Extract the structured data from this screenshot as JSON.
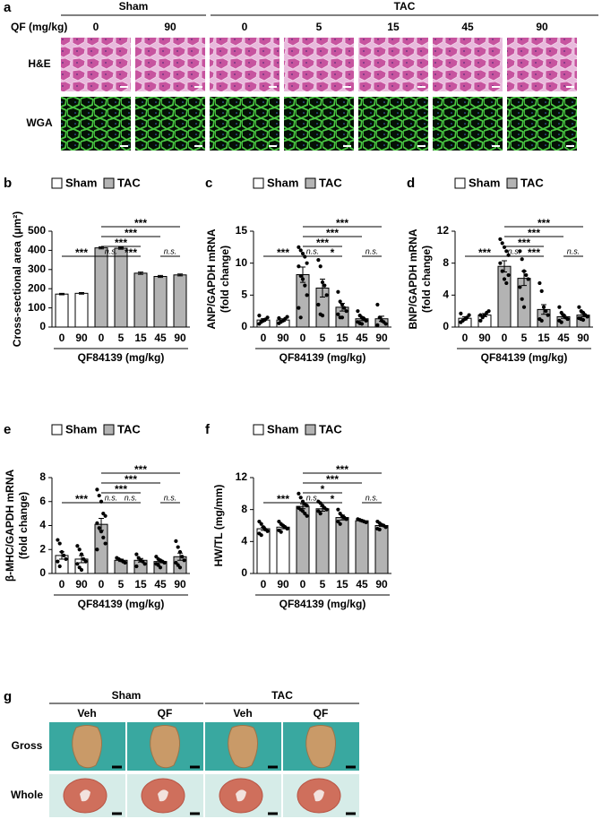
{
  "panel_a": {
    "label": "a",
    "groups": [
      "Sham",
      "TAC"
    ],
    "dose_label": "QF (mg/kg)",
    "doses": [
      "0",
      "90",
      "0",
      "5",
      "15",
      "45",
      "90"
    ],
    "rows": [
      "H&E",
      "WGA"
    ]
  },
  "chart_data": [
    {
      "type": "bar",
      "panel": "b",
      "ylabel": "Cross-sectional area (μm²)",
      "xlabel": "QF84139 (mg/kg)",
      "categories": [
        "0",
        "90",
        "0",
        "5",
        "15",
        "45",
        "90"
      ],
      "ylim": [
        0,
        500
      ],
      "yticks": [
        0,
        100,
        200,
        300,
        400,
        500
      ],
      "series": [
        {
          "name": "Sham",
          "color": "#ffffff",
          "values": [
            172,
            176,
            null,
            null,
            null,
            null,
            null
          ],
          "errors": [
            4,
            4,
            null,
            null,
            null,
            null,
            null
          ]
        },
        {
          "name": "TAC",
          "color": "#b3b3b3",
          "values": [
            null,
            null,
            413,
            411,
            281,
            264,
            272
          ],
          "errors": [
            null,
            null,
            5,
            5,
            6,
            5,
            5
          ]
        }
      ],
      "comparisons": [
        {
          "span": [
            2,
            3
          ],
          "label": "n.s."
        },
        {
          "span": [
            3,
            4
          ],
          "label": "***"
        },
        {
          "span": [
            5,
            6
          ],
          "label": "n.s."
        },
        {
          "span": [
            2,
            4
          ],
          "label": "***"
        },
        {
          "span": [
            2,
            5
          ],
          "label": "***"
        },
        {
          "span": [
            2,
            6
          ],
          "label": "***"
        },
        {
          "span": [
            0,
            2
          ],
          "label": "***"
        }
      ]
    },
    {
      "type": "bar",
      "panel": "c",
      "ylabel": [
        "ANP/GAPDH mRNA",
        "(fold change)"
      ],
      "xlabel": "QF84139 (mg/kg)",
      "categories": [
        "0",
        "90",
        "0",
        "5",
        "15",
        "45",
        "90"
      ],
      "ylim": [
        0,
        15
      ],
      "yticks": [
        0,
        5,
        10,
        15
      ],
      "series": [
        {
          "name": "Sham",
          "color": "#ffffff",
          "values": [
            1.1,
            1.1,
            null,
            null,
            null,
            null,
            null
          ],
          "errors": [
            0.2,
            0.2,
            null,
            null,
            null,
            null,
            null
          ],
          "points": [
            [
              0.5,
              0.8,
              1.0,
              1.2,
              1.5,
              1.8,
              0.9,
              1.1
            ],
            [
              0.6,
              0.9,
              1.0,
              1.3,
              1.6,
              1.4,
              0.8
            ],
            null,
            null,
            null,
            null,
            null
          ]
        },
        {
          "name": "TAC",
          "color": "#b3b3b3",
          "values": [
            null,
            null,
            8.2,
            6.1,
            3.1,
            1.3,
            1.3
          ],
          "errors": [
            null,
            null,
            1.2,
            1.4,
            0.6,
            0.3,
            0.4
          ],
          "points": [
            null,
            null,
            [
              12.5,
              12,
              11.5,
              11,
              10,
              9.5,
              8,
              7.5,
              6.5,
              5,
              3,
              1.5
            ],
            [
              10.5,
              9.5,
              7,
              6.5,
              5,
              3.5,
              2,
              1.8
            ],
            [
              5.5,
              4,
              3.5,
              3,
              2.5,
              2,
              1.5,
              1.5
            ],
            [
              2.5,
              1.8,
              1.5,
              1.3,
              1.0,
              0.8,
              0.6,
              0.5
            ],
            [
              3.5,
              1.5,
              1.0,
              0.8,
              0.5,
              0.3
            ]
          ]
        }
      ],
      "comparisons": [
        {
          "span": [
            2,
            3
          ],
          "label": "n.s."
        },
        {
          "span": [
            3,
            4
          ],
          "label": "*"
        },
        {
          "span": [
            5,
            6
          ],
          "label": "n.s."
        },
        {
          "span": [
            2,
            4
          ],
          "label": "***"
        },
        {
          "span": [
            2,
            5
          ],
          "label": "***"
        },
        {
          "span": [
            2,
            6
          ],
          "label": "***"
        },
        {
          "span": [
            0,
            2
          ],
          "label": "***"
        }
      ]
    },
    {
      "type": "bar",
      "panel": "d",
      "ylabel": [
        "BNP/GAPDH mRNA",
        "(fold change)"
      ],
      "xlabel": "QF84139 (mg/kg)",
      "categories": [
        "0",
        "90",
        "0",
        "5",
        "15",
        "45",
        "90"
      ],
      "ylim": [
        0,
        12
      ],
      "yticks": [
        0,
        4,
        8,
        12
      ],
      "series": [
        {
          "name": "Sham",
          "color": "#ffffff",
          "values": [
            1.1,
            1.5,
            null,
            null,
            null,
            null,
            null
          ],
          "errors": [
            0.2,
            0.2,
            null,
            null,
            null,
            null,
            null
          ],
          "points": [
            [
              0.6,
              0.8,
              1.0,
              1.2,
              1.5,
              1.7
            ],
            [
              0.8,
              1.2,
              1.5,
              1.8,
              2.0,
              1.5
            ],
            null,
            null,
            null,
            null,
            null
          ]
        },
        {
          "name": "TAC",
          "color": "#b3b3b3",
          "values": [
            null,
            null,
            7.6,
            6.1,
            2.2,
            1.3,
            1.5
          ],
          "errors": [
            null,
            null,
            0.7,
            0.9,
            0.6,
            0.2,
            0.2
          ],
          "points": [
            null,
            null,
            [
              11,
              10.5,
              10,
              9.5,
              9,
              8,
              7,
              6,
              5.5,
              6.5
            ],
            [
              9.5,
              8.5,
              7,
              6.5,
              6,
              5,
              3.5,
              2.5
            ],
            [
              5.5,
              4.5,
              2.5,
              2,
              1.5,
              1,
              0.8
            ],
            [
              2.5,
              1.8,
              1.5,
              1.2,
              1.0,
              0.8,
              0.6
            ],
            [
              2.5,
              2,
              1.8,
              1.5,
              1.3,
              1.1,
              1.0,
              0.9
            ]
          ]
        }
      ],
      "comparisons": [
        {
          "span": [
            2,
            3
          ],
          "label": "n.s."
        },
        {
          "span": [
            3,
            4
          ],
          "label": "***"
        },
        {
          "span": [
            5,
            6
          ],
          "label": "n.s."
        },
        {
          "span": [
            2,
            4
          ],
          "label": "***"
        },
        {
          "span": [
            2,
            5
          ],
          "label": "***"
        },
        {
          "span": [
            2,
            6
          ],
          "label": "***"
        },
        {
          "span": [
            0,
            2
          ],
          "label": "***"
        }
      ]
    },
    {
      "type": "bar",
      "panel": "e",
      "ylabel": [
        "β-MHC/GAPDH mRNA",
        "(fold change)"
      ],
      "xlabel": "QF84139 (mg/kg)",
      "categories": [
        "0",
        "90",
        "0",
        "5",
        "15",
        "45",
        "90"
      ],
      "ylim": [
        0,
        8
      ],
      "yticks": [
        0,
        2,
        4,
        6,
        8
      ],
      "series": [
        {
          "name": "Sham",
          "color": "#ffffff",
          "values": [
            1.5,
            1.2,
            null,
            null,
            null,
            null,
            null
          ],
          "errors": [
            0.3,
            0.3,
            null,
            null,
            null,
            null,
            null
          ],
          "points": [
            [
              2.8,
              2.5,
              1.8,
              1.5,
              1.2,
              1.0,
              0.6
            ],
            [
              2.3,
              2.0,
              1.6,
              1.2,
              1.0,
              0.8,
              0.5,
              0.3
            ],
            null,
            null,
            null,
            null,
            null
          ]
        },
        {
          "name": "TAC",
          "color": "#b3b3b3",
          "values": [
            null,
            null,
            4.1,
            1.1,
            1.1,
            1.0,
            1.4
          ],
          "errors": [
            null,
            null,
            0.5,
            0.1,
            0.15,
            0.1,
            0.3
          ],
          "points": [
            null,
            null,
            [
              7.0,
              6.5,
              6.0,
              5.0,
              4.8,
              4.2,
              3.8,
              3.5,
              3.0,
              2.5,
              2.0
            ],
            [
              1.3,
              1.2,
              1.1,
              1.0,
              0.9
            ],
            [
              1.6,
              1.3,
              1.1,
              1.0,
              0.8,
              0.6
            ],
            [
              1.4,
              1.2,
              1.1,
              1.0,
              0.9,
              0.8,
              0.7,
              0.5
            ],
            [
              2.7,
              2.2,
              1.8,
              1.4,
              1.1,
              0.9,
              0.7,
              0.5
            ]
          ]
        }
      ],
      "comparisons": [
        {
          "span": [
            2,
            3
          ],
          "label": "n.s."
        },
        {
          "span": [
            3,
            4
          ],
          "label": "n.s."
        },
        {
          "span": [
            5,
            6
          ],
          "label": "n.s."
        },
        {
          "span": [
            2,
            4
          ],
          "label": "***"
        },
        {
          "span": [
            2,
            5
          ],
          "label": "***"
        },
        {
          "span": [
            2,
            6
          ],
          "label": "***"
        },
        {
          "span": [
            0,
            2
          ],
          "label": "***"
        }
      ]
    },
    {
      "type": "bar",
      "panel": "f",
      "ylabel": "HW/TL (mg/mm)",
      "xlabel": "QF84139 (mg/kg)",
      "categories": [
        "0",
        "90",
        "0",
        "5",
        "15",
        "45",
        "90"
      ],
      "ylim": [
        0,
        12
      ],
      "yticks": [
        0,
        4,
        8,
        12
      ],
      "series": [
        {
          "name": "Sham",
          "color": "#ffffff",
          "values": [
            5.6,
            5.8,
            null,
            null,
            null,
            null,
            null
          ],
          "errors": [
            0.2,
            0.2,
            null,
            null,
            null,
            null,
            null
          ],
          "points": [
            [
              6.5,
              6.2,
              5.8,
              5.5,
              5.3,
              5.0,
              4.8
            ],
            [
              6.5,
              6.2,
              6.0,
              5.8,
              5.6,
              5.4,
              5.2
            ],
            null,
            null,
            null,
            null,
            null
          ]
        },
        {
          "name": "TAC",
          "color": "#b3b3b3",
          "values": [
            null,
            null,
            8.4,
            8.1,
            7.0,
            6.6,
            6.0
          ],
          "errors": [
            null,
            null,
            0.3,
            0.3,
            0.3,
            0.1,
            0.1
          ],
          "points": [
            null,
            null,
            [
              10.0,
              9.5,
              9.0,
              8.7,
              8.5,
              8.2,
              8.0,
              7.8,
              7.5,
              7.2
            ],
            [
              9.0,
              8.8,
              8.5,
              8.2,
              8.0,
              7.8,
              7.5
            ],
            [
              8.0,
              7.5,
              7.2,
              7.0,
              6.8,
              6.5,
              6.2
            ],
            [
              6.8,
              6.7,
              6.6,
              6.5,
              6.4
            ],
            [
              6.5,
              6.3,
              6.1,
              6.0,
              5.8,
              5.6,
              5.5
            ]
          ]
        }
      ],
      "comparisons": [
        {
          "span": [
            2,
            3
          ],
          "label": "n.s."
        },
        {
          "span": [
            3,
            4
          ],
          "label": "*"
        },
        {
          "span": [
            5,
            6
          ],
          "label": "n.s."
        },
        {
          "span": [
            2,
            4
          ],
          "label": "*"
        },
        {
          "span": [
            2,
            5
          ],
          "label": "***"
        },
        {
          "span": [
            2,
            6
          ],
          "label": "***"
        },
        {
          "span": [
            0,
            2
          ],
          "label": "***"
        }
      ]
    }
  ],
  "panel_g": {
    "label": "g",
    "groups": [
      "Sham",
      "TAC"
    ],
    "columns": [
      "Veh",
      "QF",
      "Veh",
      "QF"
    ],
    "rows": [
      "Gross",
      "Whole"
    ]
  }
}
